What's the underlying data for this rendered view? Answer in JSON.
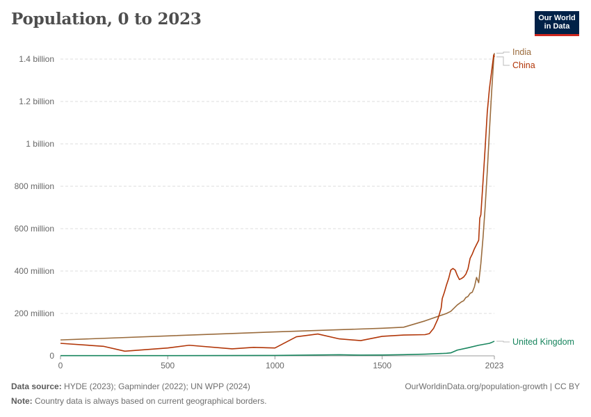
{
  "header": {
    "title": "Population, 0 to 2023",
    "logo_line1": "Our World",
    "logo_line2": "in Data"
  },
  "footer": {
    "source_label": "Data source:",
    "source_text": "HYDE (2023); Gapminder (2022); UN WPP (2024)",
    "credit": "OurWorldinData.org/population-growth | CC BY",
    "note_label": "Note:",
    "note_text": "Country data is always based on current geographical borders."
  },
  "chart_data": {
    "type": "line",
    "title": "Population, 0 to 2023",
    "xlim": [
      0,
      2023
    ],
    "ylim": [
      0,
      1400000000
    ],
    "x_ticks": [
      {
        "value": 0,
        "label": "0"
      },
      {
        "value": 500,
        "label": "500"
      },
      {
        "value": 1000,
        "label": "1000"
      },
      {
        "value": 1500,
        "label": "1500"
      },
      {
        "value": 2023,
        "label": "2023"
      }
    ],
    "y_ticks": [
      {
        "value": 0,
        "label": "0"
      },
      {
        "value": 200000000,
        "label": "200 million"
      },
      {
        "value": 400000000,
        "label": "400 million"
      },
      {
        "value": 600000000,
        "label": "600 million"
      },
      {
        "value": 800000000,
        "label": "800 million"
      },
      {
        "value": 1000000000,
        "label": "1 billion"
      },
      {
        "value": 1200000000,
        "label": "1.2 billion"
      },
      {
        "value": 1400000000,
        "label": "1.4 billion"
      }
    ],
    "grid": "horizontal-dashed",
    "legend": "line-end labels",
    "series": [
      {
        "name": "India",
        "color": "#9a6b3c",
        "points": [
          [
            0,
            75000000
          ],
          [
            1000,
            113000000
          ],
          [
            1500,
            130000000
          ],
          [
            1600,
            135000000
          ],
          [
            1700,
            165000000
          ],
          [
            1800,
            200000000
          ],
          [
            1820,
            210000000
          ],
          [
            1850,
            240000000
          ],
          [
            1870,
            255000000
          ],
          [
            1880,
            260000000
          ],
          [
            1890,
            275000000
          ],
          [
            1900,
            280000000
          ],
          [
            1910,
            295000000
          ],
          [
            1920,
            300000000
          ],
          [
            1930,
            325000000
          ],
          [
            1940,
            370000000
          ],
          [
            1950,
            345000000
          ],
          [
            1960,
            435000000
          ],
          [
            1970,
            555000000
          ],
          [
            1980,
            700000000
          ],
          [
            1990,
            870000000
          ],
          [
            2000,
            1060000000
          ],
          [
            2010,
            1240000000
          ],
          [
            2020,
            1400000000
          ],
          [
            2023,
            1428000000
          ]
        ]
      },
      {
        "name": "China",
        "color": "#b13507",
        "points": [
          [
            0,
            59000000
          ],
          [
            200,
            45000000
          ],
          [
            300,
            22000000
          ],
          [
            500,
            37000000
          ],
          [
            600,
            50000000
          ],
          [
            800,
            33000000
          ],
          [
            900,
            40000000
          ],
          [
            1000,
            37000000
          ],
          [
            1100,
            90000000
          ],
          [
            1200,
            103000000
          ],
          [
            1300,
            80000000
          ],
          [
            1400,
            72000000
          ],
          [
            1500,
            92000000
          ],
          [
            1600,
            98000000
          ],
          [
            1700,
            100000000
          ],
          [
            1720,
            105000000
          ],
          [
            1740,
            130000000
          ],
          [
            1760,
            175000000
          ],
          [
            1775,
            225000000
          ],
          [
            1780,
            270000000
          ],
          [
            1790,
            300000000
          ],
          [
            1800,
            335000000
          ],
          [
            1810,
            365000000
          ],
          [
            1820,
            405000000
          ],
          [
            1830,
            412000000
          ],
          [
            1840,
            405000000
          ],
          [
            1850,
            380000000
          ],
          [
            1860,
            360000000
          ],
          [
            1870,
            365000000
          ],
          [
            1880,
            372000000
          ],
          [
            1890,
            385000000
          ],
          [
            1900,
            410000000
          ],
          [
            1910,
            460000000
          ],
          [
            1920,
            480000000
          ],
          [
            1930,
            505000000
          ],
          [
            1940,
            525000000
          ],
          [
            1950,
            545000000
          ],
          [
            1955,
            650000000
          ],
          [
            1960,
            665000000
          ],
          [
            1970,
            820000000
          ],
          [
            1980,
            980000000
          ],
          [
            1990,
            1150000000
          ],
          [
            2000,
            1260000000
          ],
          [
            2010,
            1340000000
          ],
          [
            2020,
            1420000000
          ],
          [
            2023,
            1410000000
          ]
        ]
      },
      {
        "name": "United Kingdom",
        "color": "#18855e",
        "points": [
          [
            0,
            1000000
          ],
          [
            500,
            1000000
          ],
          [
            1000,
            2000000
          ],
          [
            1300,
            5000000
          ],
          [
            1400,
            3500000
          ],
          [
            1500,
            4000000
          ],
          [
            1600,
            5500000
          ],
          [
            1700,
            8000000
          ],
          [
            1800,
            12000000
          ],
          [
            1820,
            14000000
          ],
          [
            1850,
            27000000
          ],
          [
            1900,
            38000000
          ],
          [
            1950,
            50000000
          ],
          [
            2000,
            59000000
          ],
          [
            2010,
            63000000
          ],
          [
            2023,
            69000000
          ]
        ]
      }
    ]
  }
}
